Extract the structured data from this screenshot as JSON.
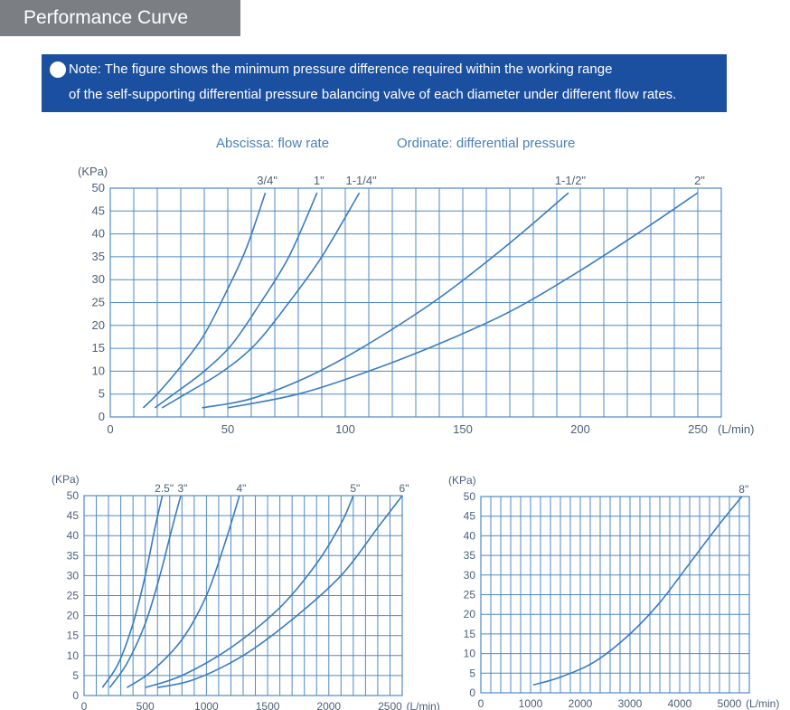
{
  "header": {
    "title": "Performance Curve"
  },
  "note": {
    "line1": "Note: The figure shows the minimum pressure difference required within the working range",
    "line2": "of the self-supporting differential pressure balancing valve of each diameter under different flow rates."
  },
  "axis_notes": {
    "abscissa": "Abscissa: flow rate",
    "ordinate": "Ordinate: differential pressure"
  },
  "colors": {
    "curve": "#3a7bbf",
    "grid": "#4f8ac4",
    "text": "#4d5f77",
    "header_bg": "#7b7f84",
    "note_bg": "#1b4fa0"
  },
  "chart_data": [
    {
      "type": "line",
      "ylabel": "(KPa)",
      "x_unit": "(L/min)",
      "xlim": [
        0,
        260
      ],
      "ylim": [
        0,
        50
      ],
      "x_ticks": [
        0,
        50,
        100,
        150,
        200,
        250
      ],
      "x_tick_labels": [
        "0",
        "50",
        "100",
        "150",
        "200",
        "250"
      ],
      "y_ticks": [
        0,
        5,
        10,
        15,
        20,
        25,
        30,
        35,
        40,
        45,
        50
      ],
      "y_tick_labels": [
        "0",
        "5",
        "10",
        "15",
        "20",
        "25",
        "30",
        "35",
        "40",
        "45",
        "50"
      ],
      "x_grid_step": 10,
      "y_grid_step": 5,
      "series": [
        {
          "name": "3/4\"",
          "points": [
            [
              14,
              2
            ],
            [
              20,
              5
            ],
            [
              30,
              11
            ],
            [
              40,
              18
            ],
            [
              50,
              28
            ],
            [
              58,
              37
            ],
            [
              66,
              49
            ]
          ]
        },
        {
          "name": "1\"",
          "points": [
            [
              19,
              2
            ],
            [
              27,
              5
            ],
            [
              40,
              10
            ],
            [
              52,
              16
            ],
            [
              64,
              25
            ],
            [
              76,
              35
            ],
            [
              88,
              49
            ]
          ]
        },
        {
          "name": "1-1/4\"",
          "points": [
            [
              22,
              2
            ],
            [
              32,
              5
            ],
            [
              48,
              10
            ],
            [
              62,
              16
            ],
            [
              76,
              25
            ],
            [
              90,
              35
            ],
            [
              106,
              49
            ]
          ]
        },
        {
          "name": "1-1/2\"",
          "points": [
            [
              39,
              2
            ],
            [
              60,
              4
            ],
            [
              85,
              9
            ],
            [
              110,
              16
            ],
            [
              140,
              26
            ],
            [
              170,
              38
            ],
            [
              195,
              49
            ]
          ]
        },
        {
          "name": "2\"",
          "points": [
            [
              50,
              2
            ],
            [
              80,
              5
            ],
            [
              110,
              10
            ],
            [
              140,
              16
            ],
            [
              170,
              23
            ],
            [
              200,
              32
            ],
            [
              230,
              42
            ],
            [
              250,
              49
            ]
          ]
        }
      ]
    },
    {
      "type": "line",
      "ylabel": "(KPa)",
      "x_unit": "(L/min)",
      "xlim": [
        0,
        2600
      ],
      "ylim": [
        0,
        50
      ],
      "x_ticks": [
        0,
        500,
        1000,
        1500,
        2000,
        2500
      ],
      "x_tick_labels": [
        "0",
        "500",
        "1000",
        "1500",
        "2000",
        "2500"
      ],
      "y_ticks": [
        0,
        5,
        10,
        15,
        20,
        25,
        30,
        35,
        40,
        45,
        50
      ],
      "y_tick_labels": [
        "0",
        "5",
        "10",
        "15",
        "20",
        "25",
        "30",
        "35",
        "40",
        "45",
        "50"
      ],
      "x_grid_step": 100,
      "y_grid_step": 5,
      "series": [
        {
          "name": "2.5\"",
          "points": [
            [
              150,
              2
            ],
            [
              280,
              8
            ],
            [
              400,
              18
            ],
            [
              500,
              30
            ],
            [
              580,
              42
            ],
            [
              640,
              50
            ]
          ]
        },
        {
          "name": "3\"",
          "points": [
            [
              210,
              2
            ],
            [
              350,
              8
            ],
            [
              500,
              18
            ],
            [
              620,
              30
            ],
            [
              720,
              42
            ],
            [
              790,
              50
            ]
          ]
        },
        {
          "name": "4\"",
          "points": [
            [
              350,
              2
            ],
            [
              550,
              6
            ],
            [
              800,
              14
            ],
            [
              1000,
              25
            ],
            [
              1150,
              38
            ],
            [
              1270,
              50
            ]
          ]
        },
        {
          "name": "5\"",
          "points": [
            [
              500,
              2
            ],
            [
              800,
              5
            ],
            [
              1200,
              12
            ],
            [
              1600,
              22
            ],
            [
              1900,
              33
            ],
            [
              2100,
              43
            ],
            [
              2200,
              50
            ]
          ]
        },
        {
          "name": "6\"",
          "points": [
            [
              600,
              2
            ],
            [
              900,
              4
            ],
            [
              1300,
              10
            ],
            [
              1700,
              19
            ],
            [
              2100,
              30
            ],
            [
              2400,
              42
            ],
            [
              2600,
              50
            ]
          ]
        }
      ],
      "series_labels": [
        "2.5\"",
        "3\""
      ]
    },
    {
      "type": "line",
      "ylabel": "(KPa)",
      "x_unit": "(L/min)",
      "xlim": [
        0,
        5400
      ],
      "ylim": [
        0,
        50
      ],
      "x_ticks": [
        0,
        1000,
        2000,
        3000,
        4000,
        5000
      ],
      "x_tick_labels": [
        "0",
        "1000",
        "2000",
        "3000",
        "4000",
        "5000"
      ],
      "y_ticks": [
        0,
        5,
        10,
        15,
        20,
        25,
        30,
        35,
        40,
        45,
        50
      ],
      "y_tick_labels": [
        "0",
        "5",
        "10",
        "15",
        "20",
        "25",
        "30",
        "35",
        "40",
        "45",
        "50"
      ],
      "x_grid_step": 200,
      "y_grid_step": 5,
      "series": [
        {
          "name": "8\"",
          "points": [
            [
              1050,
              2
            ],
            [
              1600,
              4
            ],
            [
              2300,
              8
            ],
            [
              3000,
              15
            ],
            [
              3600,
              23
            ],
            [
              4200,
              33
            ],
            [
              4800,
              43
            ],
            [
              5250,
              50
            ]
          ]
        }
      ]
    }
  ]
}
